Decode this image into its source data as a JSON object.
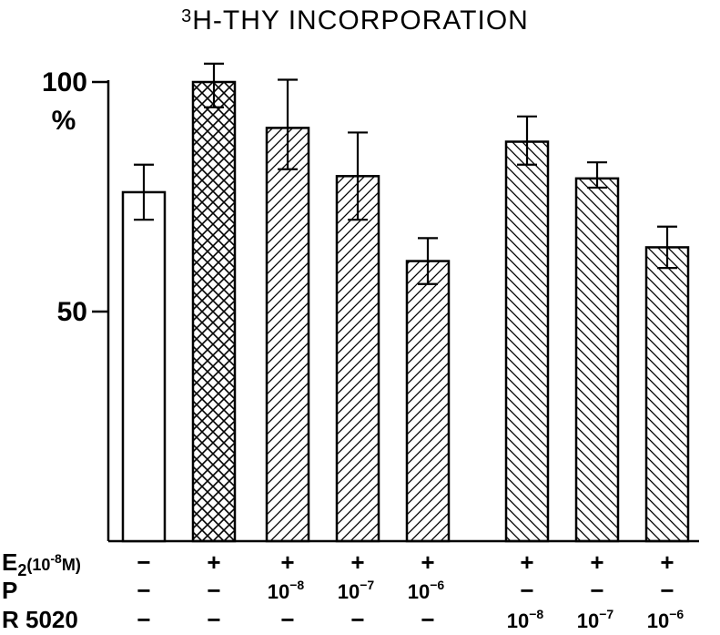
{
  "chart_data": {
    "type": "bar",
    "title_superscript": "3",
    "title_main": "H-THY INCORPORATION",
    "ylabel": "%",
    "ylim": [
      0,
      100
    ],
    "yticks": [
      {
        "value": 50,
        "label": "50"
      },
      {
        "value": 100,
        "label": "100"
      }
    ],
    "bars": [
      {
        "label": "control",
        "value": 76,
        "err_low": 70,
        "err_high": 82,
        "pattern": "none",
        "group": 0
      },
      {
        "label": "E2",
        "value": 100,
        "err_low": 94.5,
        "err_high": 104,
        "pattern": "crosshatch",
        "group": 0
      },
      {
        "label": "E2 + P 10-8",
        "value": 90,
        "err_low": 81,
        "err_high": 100.5,
        "pattern": "diag-up",
        "group": 0
      },
      {
        "label": "E2 + P 10-7",
        "value": 79.5,
        "err_low": 70,
        "err_high": 89,
        "pattern": "diag-up",
        "group": 0
      },
      {
        "label": "E2 + P 10-6",
        "value": 61,
        "err_low": 56,
        "err_high": 66,
        "pattern": "diag-up",
        "group": 0
      },
      {
        "label": "E2 + R5020 10-8",
        "value": 87,
        "err_low": 82,
        "err_high": 92.5,
        "pattern": "diag-down",
        "group": 1
      },
      {
        "label": "E2 + R5020 10-7",
        "value": 79,
        "err_low": 77,
        "err_high": 82.5,
        "pattern": "diag-down",
        "group": 1
      },
      {
        "label": "E2 + R5020 10-6",
        "value": 64,
        "err_low": 59.5,
        "err_high": 68.5,
        "pattern": "diag-down",
        "group": 1
      }
    ],
    "rows": [
      {
        "label_main": "E",
        "label_sub": "2",
        "label_suffix": "(10",
        "label_exp": "-8",
        "label_unit": "M)",
        "cells": [
          {
            "sym": "−"
          },
          {
            "sym": "+"
          },
          {
            "sym": "+"
          },
          {
            "sym": "+"
          },
          {
            "sym": "+"
          },
          {
            "sym": "+"
          },
          {
            "sym": "+"
          },
          {
            "sym": "+"
          }
        ]
      },
      {
        "label_main": "P",
        "cells": [
          {
            "sym": "−"
          },
          {
            "sym": "−"
          },
          {
            "base": "10",
            "exp": "−8"
          },
          {
            "base": "10",
            "exp": "−7"
          },
          {
            "base": "10",
            "exp": "−6"
          },
          {
            "sym": "−"
          },
          {
            "sym": "−"
          },
          {
            "sym": "−"
          }
        ]
      },
      {
        "label_main": "R 5020",
        "cells": [
          {
            "sym": "−"
          },
          {
            "sym": "−"
          },
          {
            "sym": "−"
          },
          {
            "sym": "−"
          },
          {
            "sym": "−"
          },
          {
            "base": "10",
            "exp": "−8"
          },
          {
            "base": "10",
            "exp": "−7"
          },
          {
            "base": "10",
            "exp": "−6"
          }
        ]
      }
    ]
  }
}
